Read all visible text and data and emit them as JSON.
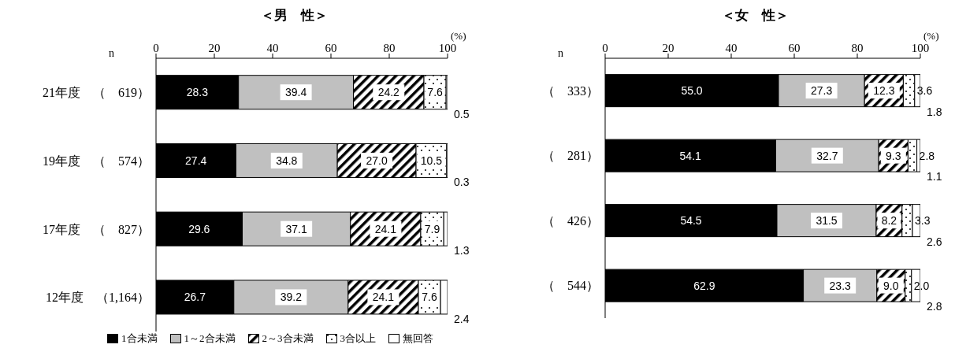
{
  "chart_data": [
    {
      "type": "bar",
      "title": "＜男　性＞",
      "xlabel": "(%)",
      "orientation": "horizontal",
      "stacked": true,
      "legend": "bottom",
      "annotations": [
        "n"
      ],
      "categories": [
        "21年度　（　619）",
        "19年度　（　574）",
        "17年度　（　827）",
        "12年度　（1,164）"
      ],
      "xlim": [
        0,
        100
      ],
      "xticks": [
        0,
        20,
        40,
        60,
        80,
        100
      ],
      "series": [
        {
          "name": "1合未満",
          "color": "#000000",
          "values": [
            28.3,
            27.4,
            29.6,
            26.7
          ],
          "value_labels": [
            "28.3",
            "27.4",
            "29.6",
            "26.7"
          ]
        },
        {
          "name": "1～2合未満",
          "color": "#c0c0c0",
          "values": [
            39.4,
            34.8,
            37.1,
            39.2
          ],
          "value_labels": [
            "39.4",
            "34.8",
            "37.1",
            "39.2"
          ]
        },
        {
          "name": "2～3合未満",
          "color": "#000000",
          "values": [
            24.2,
            27.0,
            24.1,
            24.1
          ],
          "value_labels": [
            "24.2",
            "27.0",
            "24.1",
            "24.1"
          ]
        },
        {
          "name": "3合以上",
          "color": "#000000",
          "values": [
            7.6,
            10.5,
            7.9,
            7.6
          ],
          "value_labels": [
            "7.6",
            "10.5",
            "7.9",
            "7.6"
          ]
        },
        {
          "name": "無回答",
          "color": "#ffffff",
          "values": [
            0.5,
            0.3,
            1.3,
            2.4
          ],
          "value_labels": [
            "0.5",
            "0.3",
            "1.3",
            "2.4"
          ]
        }
      ]
    },
    {
      "type": "bar",
      "title": "＜女　性＞",
      "xlabel": "(%)",
      "orientation": "horizontal",
      "stacked": true,
      "annotations": [
        "n"
      ],
      "categories": [
        "（　333）",
        "（　281）",
        "（　426）",
        "（　544）"
      ],
      "xlim": [
        0,
        100
      ],
      "xticks": [
        0,
        20,
        40,
        60,
        80,
        100
      ],
      "series": [
        {
          "color": "#000000",
          "values": [
            55.0,
            54.1,
            54.5,
            62.9
          ],
          "value_labels": [
            "55.0",
            "54.1",
            "54.5",
            "62.9"
          ]
        },
        {
          "color": "#c0c0c0",
          "values": [
            27.3,
            32.7,
            31.5,
            23.3
          ],
          "value_labels": [
            "27.3",
            "32.7",
            "31.5",
            "23.3"
          ]
        },
        {
          "color": "#000000",
          "values": [
            12.3,
            9.3,
            8.2,
            9.0
          ],
          "value_labels": [
            "12.3",
            "9.3",
            "8.2",
            "9.0"
          ]
        },
        {
          "color": "#000000",
          "values": [
            3.6,
            2.8,
            3.3,
            2.0
          ],
          "value_labels": [
            "3.6",
            "2.8",
            "3.3",
            "2.0"
          ]
        },
        {
          "color": "#ffffff",
          "values": [
            1.8,
            1.1,
            2.6,
            2.8
          ],
          "value_labels": [
            "1.8",
            "1.1",
            "2.6",
            "2.8"
          ]
        }
      ]
    }
  ]
}
